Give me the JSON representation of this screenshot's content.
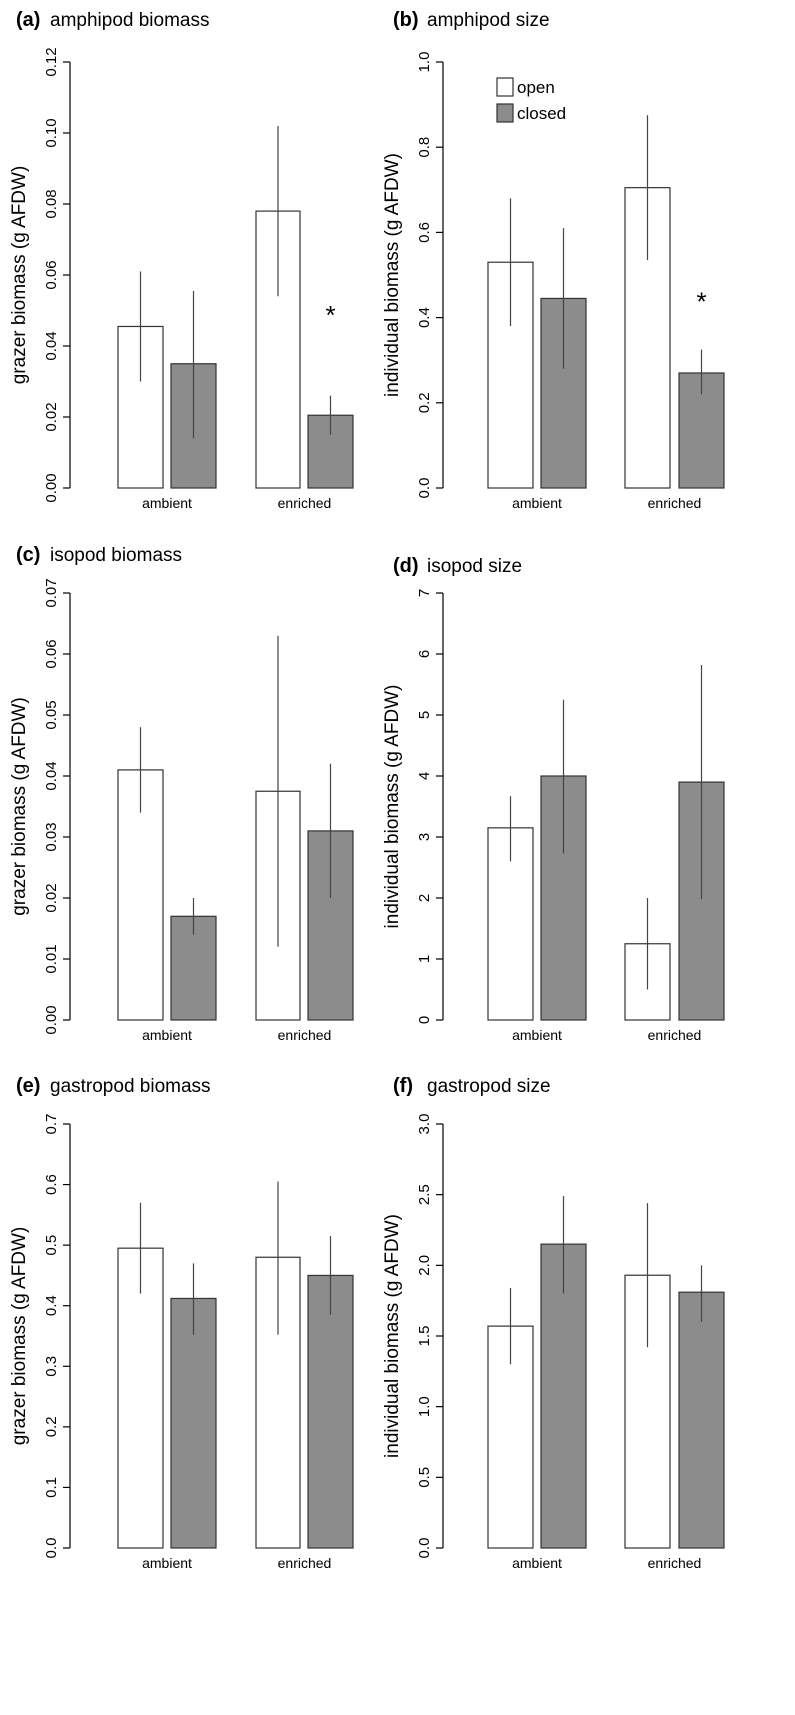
{
  "legend": [
    {
      "label": "open",
      "color": "#ffffff"
    },
    {
      "label": "closed",
      "color": "#8c8c8c"
    }
  ],
  "chart_data": [
    {
      "type": "bar",
      "panel": "a",
      "title_letter": "(a)",
      "title_text": "amphipod biomass",
      "ylabel": "grazer biomass (g AFDW)",
      "categories": [
        "ambient",
        "enriched"
      ],
      "ylim": [
        0,
        0.12
      ],
      "yticks": [
        "0.00",
        "0.02",
        "0.04",
        "0.06",
        "0.08",
        "0.10",
        "0.12"
      ],
      "series": [
        {
          "name": "open",
          "values": [
            0.0455,
            0.078
          ],
          "err_low": [
            0.03,
            0.054
          ],
          "err_high": [
            0.061,
            0.102
          ]
        },
        {
          "name": "closed",
          "values": [
            0.035,
            0.0205
          ],
          "err_low": [
            0.014,
            0.015
          ],
          "err_high": [
            0.0555,
            0.026
          ]
        }
      ],
      "annotations": [
        {
          "text": "*",
          "category": "enriched",
          "y": 0.049
        }
      ]
    },
    {
      "type": "bar",
      "panel": "b",
      "title_letter": "(b)",
      "title_text": "amphipod size",
      "ylabel": "individual biomass (g AFDW)",
      "categories": [
        "ambient",
        "enriched"
      ],
      "ylim": [
        0,
        1.0
      ],
      "yticks": [
        "0.0",
        "0.2",
        "0.4",
        "0.6",
        "0.8",
        "1.0"
      ],
      "series": [
        {
          "name": "open",
          "values": [
            0.53,
            0.705
          ],
          "err_low": [
            0.38,
            0.535
          ],
          "err_high": [
            0.68,
            0.875
          ]
        },
        {
          "name": "closed",
          "values": [
            0.445,
            0.27
          ],
          "err_low": [
            0.28,
            0.22
          ],
          "err_high": [
            0.61,
            0.325
          ]
        }
      ],
      "annotations": [
        {
          "text": "*",
          "category": "enriched",
          "y": 0.44
        }
      ],
      "legend_shown": true
    },
    {
      "type": "bar",
      "panel": "c",
      "title_letter": "(c)",
      "title_text": "isopod biomass",
      "ylabel": "grazer biomass (g AFDW)",
      "categories": [
        "ambient",
        "enriched"
      ],
      "ylim": [
        0,
        0.07
      ],
      "yticks": [
        "0.00",
        "0.01",
        "0.02",
        "0.03",
        "0.04",
        "0.05",
        "0.06",
        "0.07"
      ],
      "series": [
        {
          "name": "open",
          "values": [
            0.041,
            0.0375
          ],
          "err_low": [
            0.034,
            0.012
          ],
          "err_high": [
            0.048,
            0.063
          ]
        },
        {
          "name": "closed",
          "values": [
            0.017,
            0.031
          ],
          "err_low": [
            0.014,
            0.02
          ],
          "err_high": [
            0.02,
            0.042
          ]
        }
      ],
      "annotations": []
    },
    {
      "type": "bar",
      "panel": "d",
      "title_letter": "(d)",
      "title_text": "isopod size",
      "ylabel": "individual biomass (g AFDW)",
      "categories": [
        "ambient",
        "enriched"
      ],
      "ylim": [
        0,
        7
      ],
      "yticks": [
        "0",
        "1",
        "2",
        "3",
        "4",
        "5",
        "6",
        "7"
      ],
      "series": [
        {
          "name": "open",
          "values": [
            3.15,
            1.25
          ],
          "err_low": [
            2.6,
            0.5
          ],
          "err_high": [
            3.67,
            2.0
          ]
        },
        {
          "name": "closed",
          "values": [
            4.0,
            3.9
          ],
          "err_low": [
            2.73,
            1.98
          ],
          "err_high": [
            5.25,
            5.82
          ]
        }
      ],
      "annotations": []
    },
    {
      "type": "bar",
      "panel": "e",
      "title_letter": "(e)",
      "title_text": "gastropod biomass",
      "ylabel": "grazer biomass (g AFDW)",
      "categories": [
        "ambient",
        "enriched"
      ],
      "ylim": [
        0,
        0.7
      ],
      "yticks": [
        "0.0",
        "0.1",
        "0.2",
        "0.3",
        "0.4",
        "0.5",
        "0.6",
        "0.7"
      ],
      "series": [
        {
          "name": "open",
          "values": [
            0.495,
            0.48
          ],
          "err_low": [
            0.42,
            0.352
          ],
          "err_high": [
            0.57,
            0.605
          ]
        },
        {
          "name": "closed",
          "values": [
            0.412,
            0.45
          ],
          "err_low": [
            0.352,
            0.385
          ],
          "err_high": [
            0.47,
            0.515
          ]
        }
      ],
      "annotations": []
    },
    {
      "type": "bar",
      "panel": "f",
      "title_letter": "(f)",
      "title_text": "gastropod size",
      "ylabel": "individual biomass (g AFDW)",
      "categories": [
        "ambient",
        "enriched"
      ],
      "ylim": [
        0,
        3.0
      ],
      "yticks": [
        "0.0",
        "0.5",
        "1.0",
        "1.5",
        "2.0",
        "2.5",
        "3.0"
      ],
      "series": [
        {
          "name": "open",
          "values": [
            1.57,
            1.93
          ],
          "err_low": [
            1.3,
            1.42
          ],
          "err_high": [
            1.84,
            2.44
          ]
        },
        {
          "name": "closed",
          "values": [
            2.15,
            1.81
          ],
          "err_low": [
            1.8,
            1.6
          ],
          "err_high": [
            2.49,
            2.0
          ]
        }
      ],
      "annotations": []
    }
  ]
}
